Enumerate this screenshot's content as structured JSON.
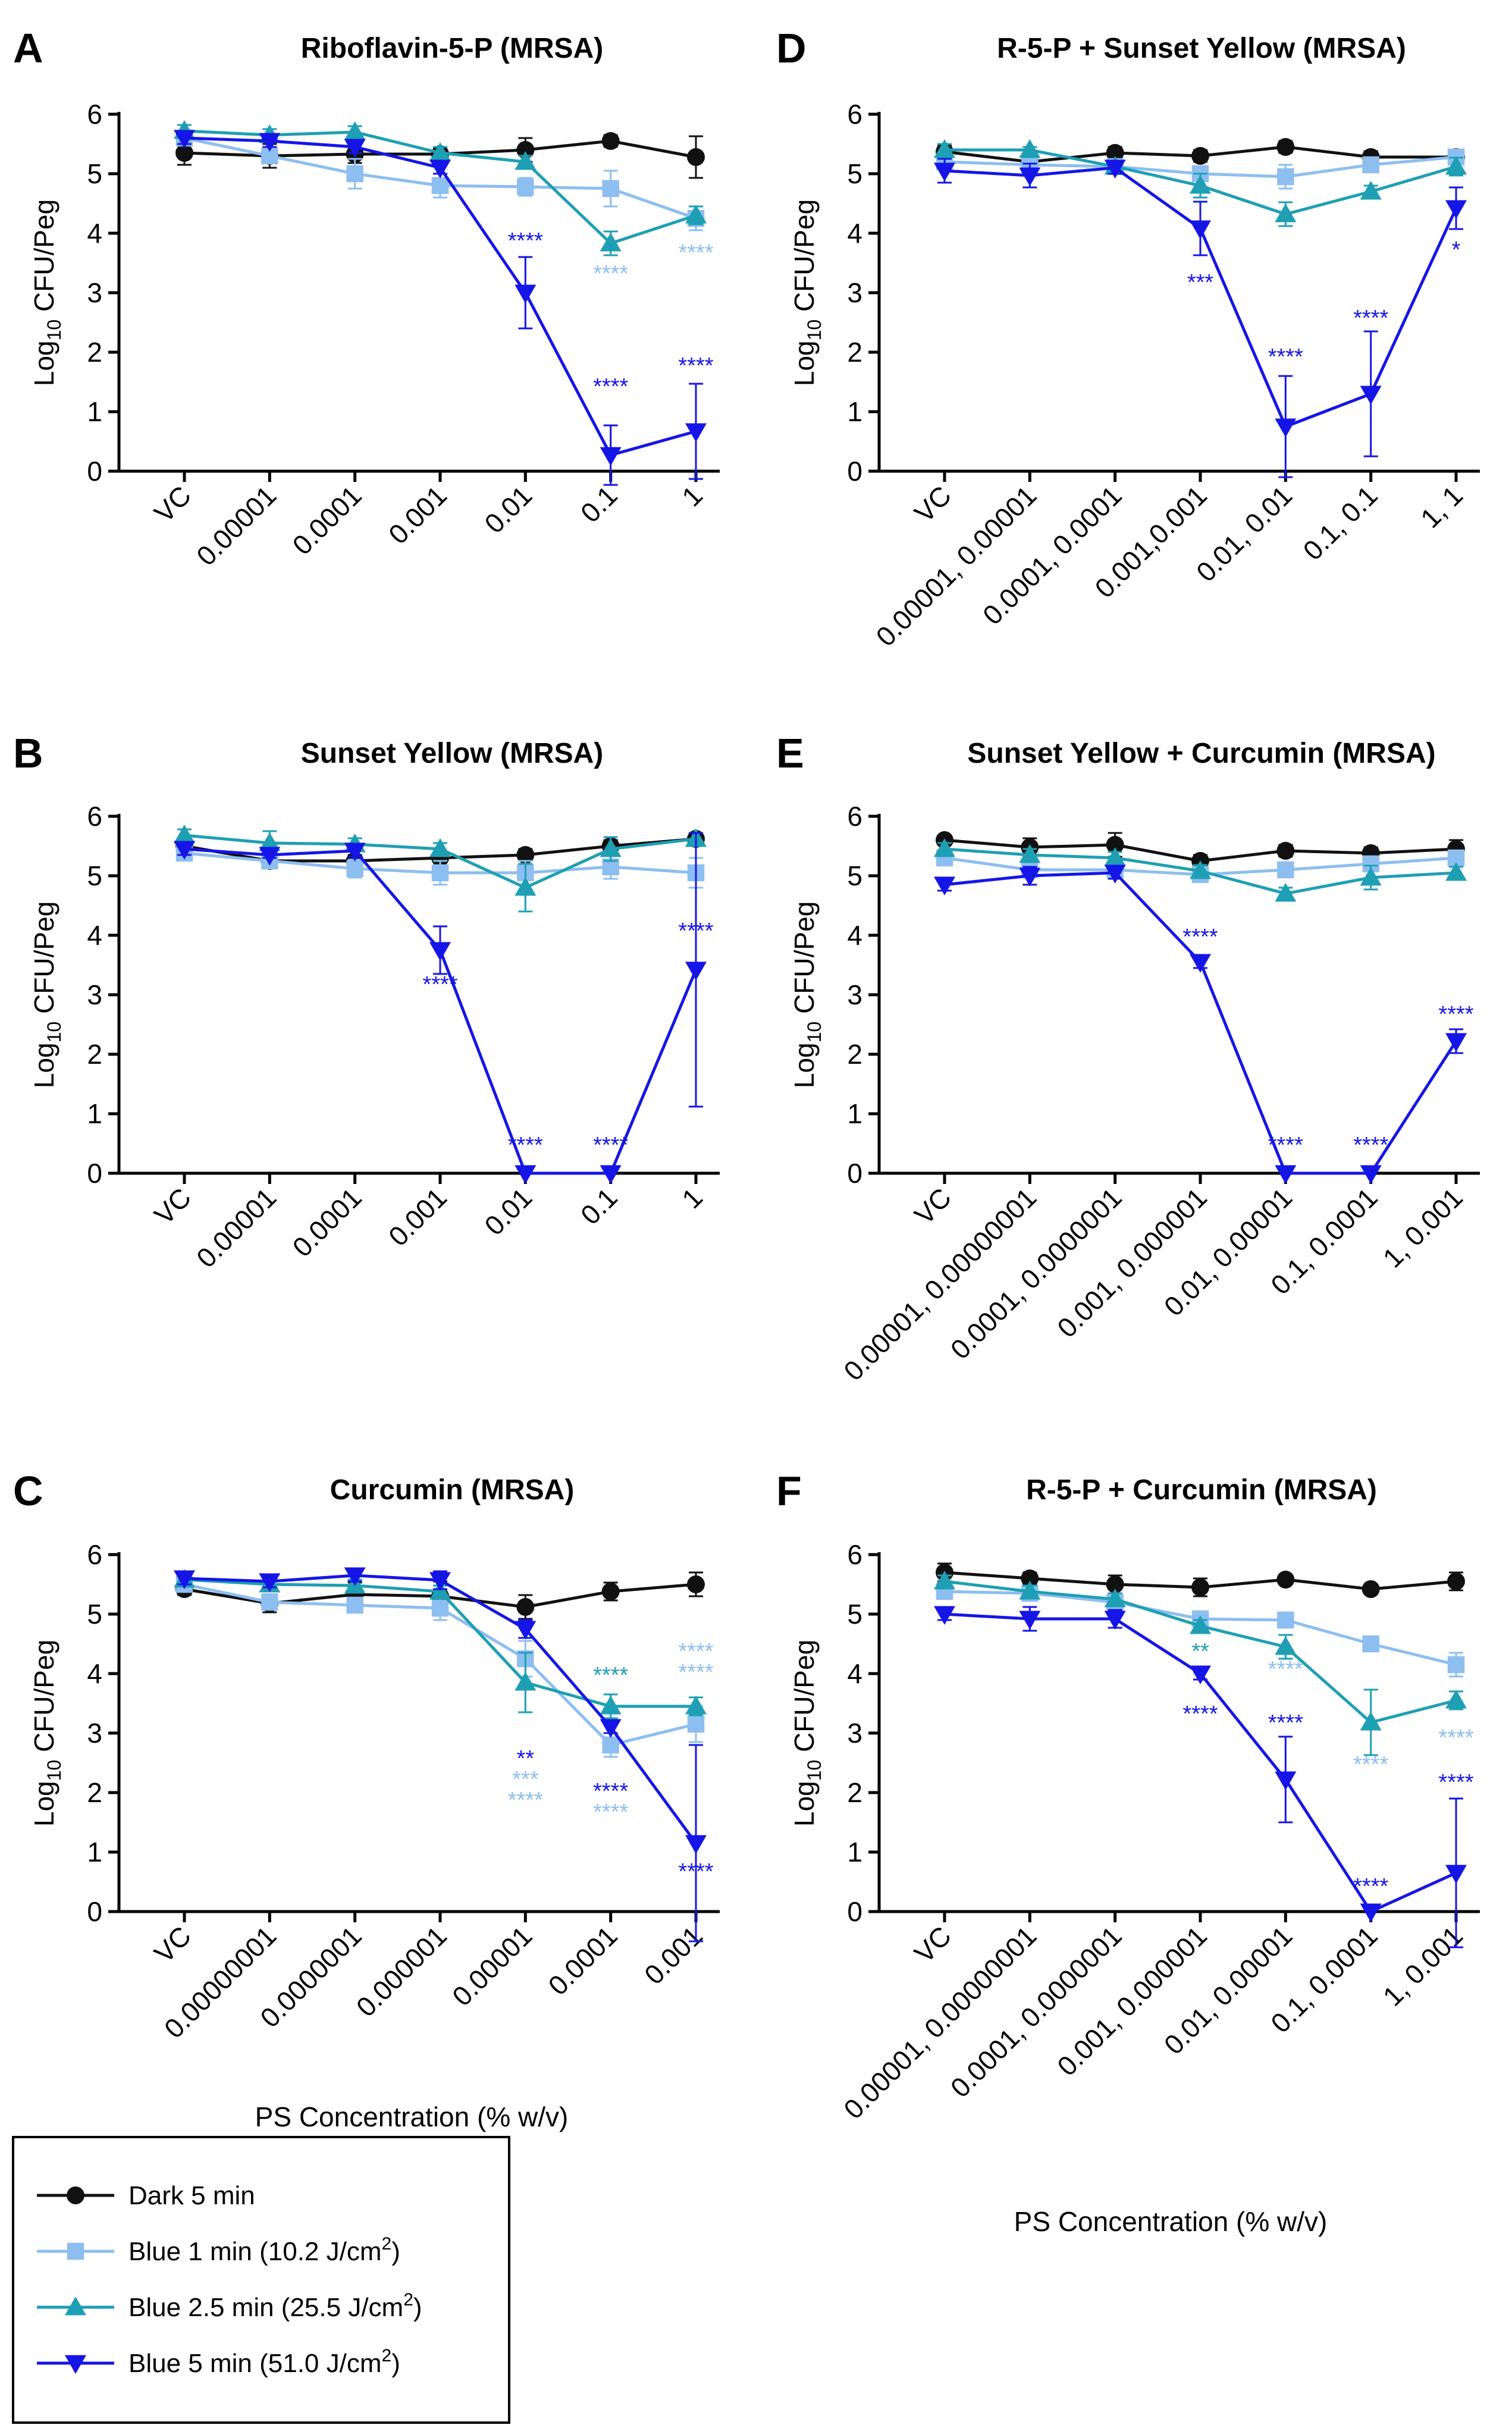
{
  "figure": {
    "xlabel": "PS Concentration (% w/v)",
    "ylabel_prefix": "Log",
    "ylabel_sub": "10",
    "ylabel_suffix": " CFU/Peg"
  },
  "legend": [
    {
      "series": "dark",
      "label": "Dark 5 min",
      "sup": ""
    },
    {
      "series": "blue1",
      "label": "Blue 1 min (10.2 J/cm",
      "sup": "2",
      "end": ")"
    },
    {
      "series": "blue25",
      "label": "Blue 2.5 min (25.5 J/cm",
      "sup": "2",
      "end": ")"
    },
    {
      "series": "blue5",
      "label": "Blue 5 min (51.0 J/cm",
      "sup": "2",
      "end": ")"
    }
  ],
  "series_styles": {
    "dark": {
      "color": "#111111",
      "marker": "circle"
    },
    "blue1": {
      "color": "#8dbef0",
      "marker": "square"
    },
    "blue25": {
      "color": "#1e9fb3",
      "marker": "triangle-up"
    },
    "blue5": {
      "color": "#1515e6",
      "marker": "triangle-down"
    }
  },
  "chart_data": [
    {
      "panel": "A",
      "type": "line",
      "title": "Riboflavin-5-P (MRSA)",
      "categories": [
        "VC",
        "0.00001",
        "0.0001",
        "0.001",
        "0.01",
        "0.1",
        "1"
      ],
      "ylim": [
        0,
        6
      ],
      "yticks": [
        0,
        1,
        2,
        3,
        4,
        5,
        6
      ],
      "ylabel": "Log10 CFU/Peg",
      "xlabel": "",
      "series": [
        {
          "name": "Dark 5 min",
          "key": "dark",
          "values": [
            5.35,
            5.3,
            5.33,
            5.33,
            5.4,
            5.55,
            5.28
          ],
          "err": [
            0.2,
            0.2,
            0.15,
            0.1,
            0.2,
            0.1,
            0.35
          ]
        },
        {
          "name": "Blue 1 min (10.2 J/cm2)",
          "key": "blue1",
          "values": [
            5.6,
            5.3,
            5.0,
            4.8,
            4.78,
            4.75,
            4.25
          ],
          "err": [
            0.1,
            0.1,
            0.25,
            0.2,
            0.15,
            0.3,
            0.2
          ]
        },
        {
          "name": "Blue 2.5 min (25.5 J/cm2)",
          "key": "blue25",
          "values": [
            5.72,
            5.65,
            5.7,
            5.35,
            5.2,
            3.83,
            4.3
          ],
          "err": [
            0.1,
            0.1,
            0.1,
            0.1,
            0.1,
            0.2,
            0.15
          ]
        },
        {
          "name": "Blue 5 min (51.0 J/cm2)",
          "key": "blue5",
          "values": [
            5.6,
            5.55,
            5.45,
            5.1,
            3.0,
            0.27,
            0.67
          ],
          "err": [
            0.1,
            0.1,
            0.1,
            0.1,
            0.6,
            0.5,
            0.8
          ]
        }
      ],
      "annotations": [
        {
          "cat": 4,
          "y": 3.75,
          "text": "****",
          "key": "blue5"
        },
        {
          "cat": 5,
          "y": 1.3,
          "text": "****",
          "key": "blue5"
        },
        {
          "cat": 5,
          "y": 3.2,
          "text": "****",
          "key": "blue1"
        },
        {
          "cat": 6,
          "y": 1.65,
          "text": "****",
          "key": "blue5"
        },
        {
          "cat": 6,
          "y": 3.55,
          "text": "****",
          "key": "blue1"
        }
      ]
    },
    {
      "panel": "B",
      "type": "line",
      "title": "Sunset Yellow (MRSA)",
      "categories": [
        "VC",
        "0.00001",
        "0.0001",
        "0.001",
        "0.01",
        "0.1",
        "1"
      ],
      "ylim": [
        0,
        6
      ],
      "yticks": [
        0,
        1,
        2,
        3,
        4,
        5,
        6
      ],
      "ylabel": "Log10 CFU/Peg",
      "xlabel": "",
      "series": [
        {
          "name": "Dark 5 min",
          "key": "dark",
          "values": [
            5.5,
            5.25,
            5.25,
            5.3,
            5.35,
            5.5,
            5.62
          ],
          "err": [
            0.1,
            0.05,
            0.1,
            0.05,
            0.1,
            0.1,
            0.1
          ]
        },
        {
          "name": "Blue 1 min (10.2 J/cm2)",
          "key": "blue1",
          "values": [
            5.38,
            5.25,
            5.12,
            5.05,
            5.05,
            5.15,
            5.05
          ],
          "err": [
            0.1,
            0.05,
            0.15,
            0.2,
            0.2,
            0.2,
            0.25
          ]
        },
        {
          "name": "Blue 2.5 min (25.5 J/cm2)",
          "key": "blue25",
          "values": [
            5.68,
            5.55,
            5.53,
            5.45,
            4.8,
            5.45,
            5.62
          ],
          "err": [
            0.1,
            0.2,
            0.1,
            0.1,
            0.4,
            0.2,
            0.1
          ]
        },
        {
          "name": "Blue 5 min (51.0 J/cm2)",
          "key": "blue5",
          "values": [
            5.45,
            5.35,
            5.42,
            3.75,
            0.0,
            0.0,
            3.42
          ],
          "err": [
            0.1,
            0.05,
            0.1,
            0.4,
            0.0,
            0.0,
            2.3
          ]
        }
      ],
      "annotations": [
        {
          "cat": 3,
          "y": 3.05,
          "text": "****",
          "key": "blue5"
        },
        {
          "cat": 4,
          "y": 0.35,
          "text": "****",
          "key": "blue5"
        },
        {
          "cat": 5,
          "y": 0.35,
          "text": "****",
          "key": "blue5"
        },
        {
          "cat": 6,
          "y": 3.95,
          "text": "****",
          "key": "blue5"
        }
      ]
    },
    {
      "panel": "C",
      "type": "line",
      "title": "Curcumin (MRSA)",
      "categories": [
        "VC",
        "0.00000001",
        "0.0000001",
        "0.000001",
        "0.00001",
        "0.0001",
        "0.001"
      ],
      "ylim": [
        0,
        6
      ],
      "yticks": [
        0,
        1,
        2,
        3,
        4,
        5,
        6
      ],
      "ylabel": "Log10 CFU/Peg",
      "xlabel": "PS Concentration (% w/v)",
      "series": [
        {
          "name": "Dark 5 min",
          "key": "dark",
          "values": [
            5.42,
            5.18,
            5.33,
            5.3,
            5.12,
            5.38,
            5.5
          ],
          "err": [
            0.1,
            0.15,
            0.2,
            0.25,
            0.2,
            0.15,
            0.2
          ]
        },
        {
          "name": "Blue 1 min (10.2 J/cm2)",
          "key": "blue1",
          "values": [
            5.5,
            5.2,
            5.15,
            5.1,
            4.25,
            2.8,
            3.15
          ],
          "err": [
            0.1,
            0.1,
            0.1,
            0.2,
            0.3,
            0.2,
            0.3
          ]
        },
        {
          "name": "Blue 2.5 min (25.5 J/cm2)",
          "key": "blue25",
          "values": [
            5.58,
            5.5,
            5.48,
            5.38,
            3.85,
            3.45,
            3.45
          ],
          "err": [
            0.1,
            0.1,
            0.1,
            0.1,
            0.5,
            0.2,
            0.15
          ]
        },
        {
          "name": "Blue 5 min (51.0 J/cm2)",
          "key": "blue5",
          "values": [
            5.6,
            5.55,
            5.65,
            5.57,
            4.75,
            3.1,
            1.15
          ],
          "err": [
            0.1,
            0.1,
            0.1,
            0.15,
            0.15,
            0.1,
            1.65
          ]
        }
      ],
      "annotations": [
        {
          "cat": 4,
          "y": 2.45,
          "text": "**",
          "key": "blue5"
        },
        {
          "cat": 4,
          "y": 2.1,
          "text": "***",
          "key": "blue1"
        },
        {
          "cat": 4,
          "y": 1.75,
          "text": "****",
          "key": "blue1"
        },
        {
          "cat": 5,
          "y": 3.85,
          "text": "****",
          "key": "blue25"
        },
        {
          "cat": 5,
          "y": 1.9,
          "text": "****",
          "key": "blue5"
        },
        {
          "cat": 5,
          "y": 1.55,
          "text": "****",
          "key": "blue1"
        },
        {
          "cat": 6,
          "y": 4.25,
          "text": "****",
          "key": "blue1"
        },
        {
          "cat": 6,
          "y": 3.9,
          "text": "****",
          "key": "blue1"
        },
        {
          "cat": 6,
          "y": 0.55,
          "text": "****",
          "key": "blue5"
        }
      ]
    },
    {
      "panel": "D",
      "type": "line",
      "title": "R-5-P + Sunset Yellow (MRSA)",
      "categories": [
        "VC",
        "0.00001, 0.00001",
        "0.0001, 0.0001",
        "0.001,0.001",
        "0.01, 0.01",
        "0.1, 0.1",
        "1, 1"
      ],
      "ylim": [
        0,
        6
      ],
      "yticks": [
        0,
        1,
        2,
        3,
        4,
        5,
        6
      ],
      "ylabel": "Log10 CFU/Peg",
      "xlabel": "",
      "series": [
        {
          "name": "Dark 5 min",
          "key": "dark",
          "values": [
            5.37,
            5.2,
            5.35,
            5.3,
            5.45,
            5.28,
            5.28
          ],
          "err": [
            0.1,
            0.1,
            0.1,
            0.1,
            0.1,
            0.1,
            0.1
          ]
        },
        {
          "name": "Blue 1 min (10.2 J/cm2)",
          "key": "blue1",
          "values": [
            5.2,
            5.15,
            5.12,
            5.0,
            4.95,
            5.15,
            5.28
          ],
          "err": [
            0.1,
            0.1,
            0.1,
            0.1,
            0.2,
            0.1,
            0.1
          ]
        },
        {
          "name": "Blue 2.5 min (25.5 J/cm2)",
          "key": "blue25",
          "values": [
            5.4,
            5.4,
            5.12,
            4.8,
            4.32,
            4.7,
            5.12
          ],
          "err": [
            0.1,
            0.05,
            0.1,
            0.2,
            0.2,
            0.1,
            0.15
          ]
        },
        {
          "name": "Blue 5 min (51.0 J/cm2)",
          "key": "blue5",
          "values": [
            5.05,
            4.97,
            5.1,
            4.08,
            0.75,
            1.3,
            4.42
          ],
          "err": [
            0.2,
            0.2,
            0.1,
            0.45,
            0.85,
            1.05,
            0.35
          ]
        }
      ],
      "annotations": [
        {
          "cat": 3,
          "y": 3.05,
          "text": "***",
          "key": "blue5"
        },
        {
          "cat": 4,
          "y": 1.8,
          "text": "****",
          "key": "blue5"
        },
        {
          "cat": 5,
          "y": 2.45,
          "text": "****",
          "key": "blue5"
        },
        {
          "cat": 6,
          "y": 3.6,
          "text": "*",
          "key": "blue5"
        }
      ]
    },
    {
      "panel": "E",
      "type": "line",
      "title": "Sunset Yellow + Curcumin (MRSA)",
      "categories": [
        "VC",
        "0.00001, 0.00000001",
        "0.0001, 0.0000001",
        "0.001, 0.000001",
        "0.01, 0.00001",
        "0.1, 0.0001",
        "1, 0.001"
      ],
      "ylim": [
        0,
        6
      ],
      "yticks": [
        0,
        1,
        2,
        3,
        4,
        5,
        6
      ],
      "ylabel": "Log10 CFU/Peg",
      "xlabel": "",
      "series": [
        {
          "name": "Dark 5 min",
          "key": "dark",
          "values": [
            5.6,
            5.48,
            5.52,
            5.25,
            5.42,
            5.38,
            5.45
          ],
          "err": [
            0.05,
            0.15,
            0.2,
            0.1,
            0.1,
            0.1,
            0.15
          ]
        },
        {
          "name": "Blue 1 min (10.2 J/cm2)",
          "key": "blue1",
          "values": [
            5.3,
            5.1,
            5.1,
            5.02,
            5.1,
            5.2,
            5.3
          ],
          "err": [
            0.1,
            0.1,
            0.1,
            0.05,
            0.05,
            0.1,
            0.1
          ]
        },
        {
          "name": "Blue 2.5 min (25.5 J/cm2)",
          "key": "blue25",
          "values": [
            5.45,
            5.35,
            5.3,
            5.08,
            4.7,
            4.97,
            5.05
          ],
          "err": [
            0.1,
            0.1,
            0.1,
            0.1,
            0.1,
            0.2,
            0.1
          ]
        },
        {
          "name": "Blue 5 min (51.0 J/cm2)",
          "key": "blue5",
          "values": [
            4.85,
            5.0,
            5.05,
            3.55,
            0.0,
            0.0,
            2.22
          ],
          "err": [
            0.1,
            0.15,
            0.1,
            0.1,
            0.0,
            0.0,
            0.2
          ]
        }
      ],
      "annotations": [
        {
          "cat": 3,
          "y": 3.85,
          "text": "****",
          "key": "blue5"
        },
        {
          "cat": 4,
          "y": 0.35,
          "text": "****",
          "key": "blue5"
        },
        {
          "cat": 5,
          "y": 0.35,
          "text": "****",
          "key": "blue5"
        },
        {
          "cat": 6,
          "y": 2.55,
          "text": "****",
          "key": "blue5"
        }
      ]
    },
    {
      "panel": "F",
      "type": "line",
      "title": "R-5-P + Curcumin (MRSA)",
      "categories": [
        "VC",
        "0.00001, 0.00000001",
        "0.0001, 0.0000001",
        "0.001, 0.000001",
        "0.01, 0.00001",
        "0.1, 0.0001",
        "1, 0.001"
      ],
      "ylim": [
        0,
        6
      ],
      "yticks": [
        0,
        1,
        2,
        3,
        4,
        5,
        6
      ],
      "ylabel": "Log10 CFU/Peg",
      "xlabel": "PS Concentration (% w/v)",
      "series": [
        {
          "name": "Dark 5 min",
          "key": "dark",
          "values": [
            5.7,
            5.6,
            5.5,
            5.45,
            5.58,
            5.42,
            5.55
          ],
          "err": [
            0.15,
            0.1,
            0.15,
            0.15,
            0.05,
            0.05,
            0.15
          ]
        },
        {
          "name": "Blue 1 min (10.2 J/cm2)",
          "key": "blue1",
          "values": [
            5.38,
            5.35,
            5.2,
            4.92,
            4.9,
            4.5,
            4.15
          ],
          "err": [
            0.1,
            0.1,
            0.1,
            0.1,
            0.05,
            0.1,
            0.2
          ]
        },
        {
          "name": "Blue 2.5 min (25.5 J/cm2)",
          "key": "blue25",
          "values": [
            5.55,
            5.38,
            5.25,
            4.8,
            4.45,
            3.18,
            3.55
          ],
          "err": [
            0.1,
            0.1,
            0.1,
            0.1,
            0.2,
            0.55,
            0.15
          ]
        },
        {
          "name": "Blue 5 min (51.0 J/cm2)",
          "key": "blue5",
          "values": [
            5.0,
            4.92,
            4.92,
            4.0,
            2.22,
            0.0,
            0.65
          ],
          "err": [
            0.1,
            0.2,
            0.15,
            0.1,
            0.72,
            0.0,
            1.25
          ]
        }
      ],
      "annotations": [
        {
          "cat": 3,
          "y": 4.25,
          "text": "**",
          "key": "blue25"
        },
        {
          "cat": 3,
          "y": 3.2,
          "text": "****",
          "key": "blue5"
        },
        {
          "cat": 4,
          "y": 3.95,
          "text": "****",
          "key": "blue1"
        },
        {
          "cat": 4,
          "y": 3.05,
          "text": "****",
          "key": "blue5"
        },
        {
          "cat": 5,
          "y": 2.35,
          "text": "****",
          "key": "blue1"
        },
        {
          "cat": 5,
          "y": 0.3,
          "text": "****",
          "key": "blue5"
        },
        {
          "cat": 6,
          "y": 2.8,
          "text": "****",
          "key": "blue1"
        },
        {
          "cat": 6,
          "y": 2.05,
          "text": "****",
          "key": "blue5"
        }
      ]
    }
  ]
}
